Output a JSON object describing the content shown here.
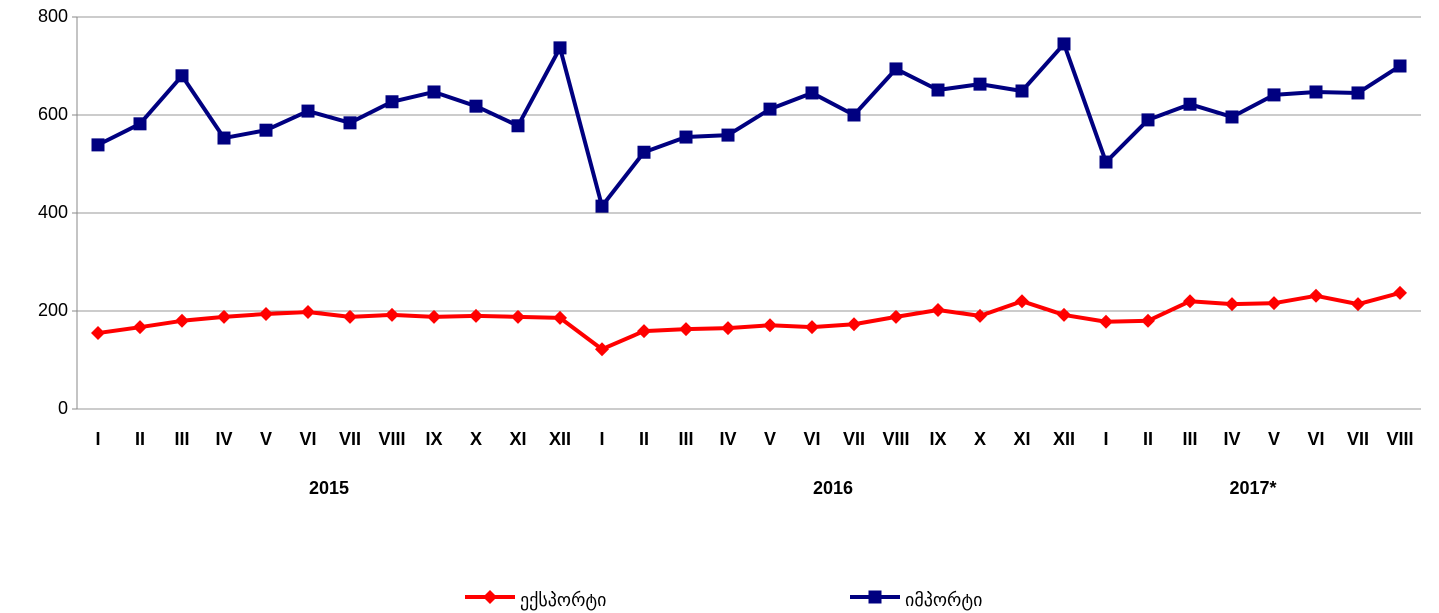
{
  "chart_data": {
    "type": "line",
    "categories": [
      "I",
      "II",
      "III",
      "IV",
      "V",
      "VI",
      "VII",
      "VIII",
      "IX",
      "X",
      "XI",
      "XII",
      "I",
      "II",
      "III",
      "IV",
      "V",
      "VI",
      "VII",
      "VIII",
      "IX",
      "X",
      "XI",
      "XII",
      "I",
      "II",
      "III",
      "IV",
      "V",
      "VI",
      "VII",
      "VIII"
    ],
    "groups": [
      {
        "name": "2015",
        "count": 12
      },
      {
        "name": "2016",
        "count": 12
      },
      {
        "name": "2017*",
        "count": 8
      }
    ],
    "series": [
      {
        "name": "ექსპორტი",
        "color": "#ff0000",
        "marker": "diamond",
        "values": [
          155,
          167,
          180,
          188,
          194,
          198,
          188,
          192,
          188,
          190,
          188,
          186,
          122,
          159,
          163,
          165,
          171,
          167,
          173,
          188,
          202,
          190,
          220,
          192,
          178,
          180,
          220,
          214,
          216,
          231,
          214,
          237
        ]
      },
      {
        "name": "იმპორტი",
        "color": "#000080",
        "marker": "square",
        "values": [
          539,
          582,
          680,
          553,
          569,
          608,
          584,
          627,
          647,
          618,
          578,
          737,
          414,
          524,
          555,
          559,
          612,
          645,
          600,
          694,
          651,
          663,
          649,
          745,
          504,
          590,
          622,
          596,
          641,
          647,
          645,
          700
        ]
      }
    ],
    "ylim": [
      0,
      800
    ],
    "yticks": [
      0,
      200,
      400,
      600,
      800
    ],
    "grid": true,
    "legend": "bottom"
  }
}
